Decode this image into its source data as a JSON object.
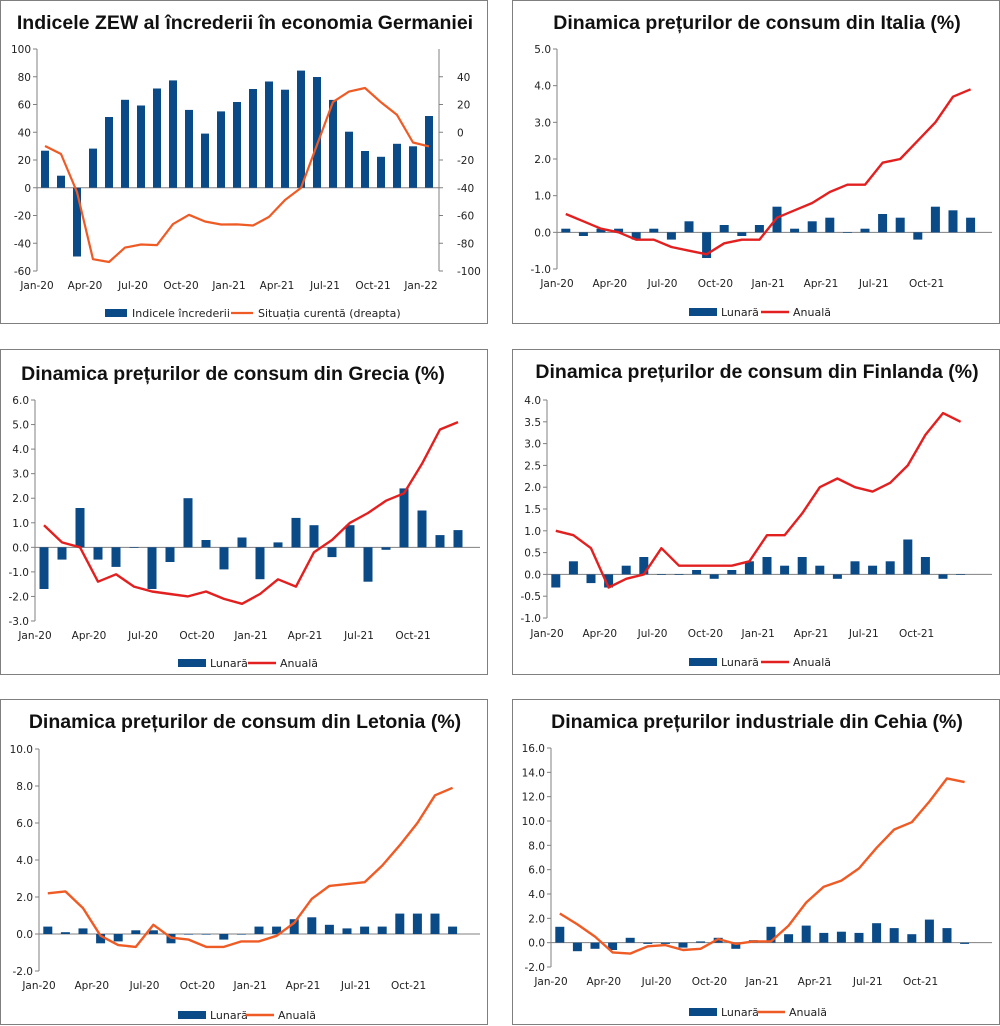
{
  "colors": {
    "bar": "#0a4a86",
    "line_red": "#e32020",
    "line_orange": "#ef5b25"
  },
  "chart_data": [
    {
      "id": "zew",
      "type": "bar+line",
      "title": "Indicele ZEW al încrederii în economia Germaniei",
      "categories": [
        "Jan-20",
        "Feb-20",
        "Mar-20",
        "Apr-20",
        "May-20",
        "Jun-20",
        "Jul-20",
        "Aug-20",
        "Sep-20",
        "Oct-20",
        "Nov-20",
        "Dec-20",
        "Jan-21",
        "Feb-21",
        "Mar-21",
        "Apr-21",
        "May-21",
        "Jun-21",
        "Jul-21",
        "Aug-21",
        "Sep-21",
        "Oct-21",
        "Nov-21",
        "Dec-21",
        "Jan-22"
      ],
      "xtick_labels": [
        "Jan-20",
        "",
        "",
        "Apr-20",
        "",
        "",
        "Jul-20",
        "",
        "",
        "Oct-20",
        "",
        "",
        "Jan-21",
        "",
        "",
        "Apr-21",
        "",
        "",
        "Jul-21",
        "",
        "",
        "Oct-21",
        "",
        "",
        "Jan-22"
      ],
      "bar_series": {
        "name": "Indicele încrederii",
        "values": [
          26.7,
          8.7,
          -49.5,
          28.2,
          51.0,
          63.4,
          59.3,
          71.5,
          77.4,
          56.1,
          39.0,
          55.0,
          61.8,
          71.2,
          76.6,
          70.7,
          84.4,
          79.8,
          63.3,
          40.4,
          26.5,
          22.3,
          31.7,
          29.9,
          51.7
        ]
      },
      "line_series": {
        "name": "Situația curentă (dreapta)",
        "axis": "right",
        "values": [
          -9.9,
          -15.7,
          -43.1,
          -91.5,
          -93.5,
          -83.1,
          -80.9,
          -81.3,
          -66.2,
          -59.5,
          -64.3,
          -66.5,
          -66.4,
          -67.2,
          -61.0,
          -48.8,
          -40.1,
          -9.1,
          21.9,
          29.3,
          31.9,
          21.6,
          12.5,
          -7.4,
          -10.2
        ]
      },
      "ylim": [
        -60,
        100
      ],
      "yticks": [
        "100",
        "80",
        "60",
        "40",
        "20",
        "0",
        "-20",
        "-40",
        "-60"
      ],
      "y2lim": [
        -100,
        60
      ],
      "y2ticks": [
        "40",
        "20",
        "0",
        "-20",
        "-40",
        "-60",
        "-80",
        "-100"
      ],
      "legend": [
        "Indicele încrederii",
        "Situația curentă (dreapta)"
      ]
    },
    {
      "id": "italia",
      "type": "bar+line",
      "title": "Dinamica prețurilor de consum din Italia (%)",
      "categories": [
        "Jan-20",
        "Feb-20",
        "Mar-20",
        "Apr-20",
        "May-20",
        "Jun-20",
        "Jul-20",
        "Aug-20",
        "Sep-20",
        "Oct-20",
        "Nov-20",
        "Dec-20",
        "Jan-21",
        "Feb-21",
        "Mar-21",
        "Apr-21",
        "May-21",
        "Jun-21",
        "Jul-21",
        "Aug-21",
        "Sep-21",
        "Oct-21",
        "Nov-21",
        "Dec-21"
      ],
      "xtick_labels": [
        "Jan-20",
        "",
        "",
        "Apr-20",
        "",
        "",
        "Jul-20",
        "",
        "",
        "Oct-20",
        "",
        "",
        "Jan-21",
        "",
        "",
        "Apr-21",
        "",
        "",
        "Jul-21",
        "",
        "",
        "Oct-21",
        "",
        ""
      ],
      "bar_series": {
        "name": "Lunară",
        "values": [
          0.1,
          -0.1,
          0.1,
          0.1,
          -0.2,
          0.1,
          -0.2,
          0.3,
          -0.7,
          0.2,
          -0.1,
          0.2,
          0.7,
          0.1,
          0.3,
          0.4,
          0.0,
          0.1,
          0.5,
          0.4,
          -0.2,
          0.7,
          0.6,
          0.4
        ]
      },
      "line_series": {
        "name": "Anuală",
        "values": [
          0.5,
          0.3,
          0.1,
          0.0,
          -0.2,
          -0.2,
          -0.4,
          -0.5,
          -0.6,
          -0.3,
          -0.2,
          -0.2,
          0.4,
          0.6,
          0.8,
          1.1,
          1.3,
          1.3,
          1.9,
          2.0,
          2.5,
          3.0,
          3.7,
          3.9
        ]
      },
      "ylim": [
        -1,
        5
      ],
      "yticks": [
        "5.0",
        "4.0",
        "3.0",
        "2.0",
        "1.0",
        "0.0",
        "-1.0"
      ],
      "legend": [
        "Lunară",
        "Anuală"
      ]
    },
    {
      "id": "grecia",
      "type": "bar+line",
      "title": "Dinamica prețurilor de consum din Grecia (%)",
      "categories": [
        "Jan-20",
        "Feb-20",
        "Mar-20",
        "Apr-20",
        "May-20",
        "Jun-20",
        "Jul-20",
        "Aug-20",
        "Sep-20",
        "Oct-20",
        "Nov-20",
        "Dec-20",
        "Jan-21",
        "Feb-21",
        "Mar-21",
        "Apr-21",
        "May-21",
        "Jun-21",
        "Jul-21",
        "Aug-21",
        "Sep-21",
        "Oct-21",
        "Nov-21",
        "Dec-21"
      ],
      "xtick_labels": [
        "Jan-20",
        "",
        "",
        "Apr-20",
        "",
        "",
        "Jul-20",
        "",
        "",
        "Oct-20",
        "",
        "",
        "Jan-21",
        "",
        "",
        "Apr-21",
        "",
        "",
        "Jul-21",
        "",
        "",
        "Oct-21",
        "",
        ""
      ],
      "bar_series": {
        "name": "Lunară",
        "values": [
          -1.7,
          -0.5,
          1.6,
          -0.5,
          -0.8,
          0.0,
          -1.7,
          -0.6,
          2.0,
          0.3,
          -0.9,
          0.4,
          -1.3,
          0.2,
          1.2,
          0.9,
          -0.4,
          0.9,
          -1.4,
          -0.1,
          2.4,
          1.5,
          0.5,
          0.7
        ]
      },
      "line_series": {
        "name": "Anuală",
        "values": [
          0.9,
          0.2,
          0.0,
          -1.4,
          -1.1,
          -1.6,
          -1.8,
          -1.9,
          -2.0,
          -1.8,
          -2.1,
          -2.3,
          -1.9,
          -1.3,
          -1.6,
          -0.2,
          0.3,
          1.0,
          1.4,
          1.9,
          2.2,
          3.4,
          4.8,
          5.1
        ]
      },
      "ylim": [
        -3,
        6
      ],
      "yticks": [
        "6.0",
        "5.0",
        "4.0",
        "3.0",
        "2.0",
        "1.0",
        "0.0",
        "-1.0",
        "-2.0",
        "-3.0"
      ],
      "legend": [
        "Lunară",
        "Anuală"
      ]
    },
    {
      "id": "finlanda",
      "type": "bar+line",
      "title": "Dinamica prețurilor de consum din Finlanda (%)",
      "categories": [
        "Jan-20",
        "Feb-20",
        "Mar-20",
        "Apr-20",
        "May-20",
        "Jun-20",
        "Jul-20",
        "Aug-20",
        "Sep-20",
        "Oct-20",
        "Nov-20",
        "Dec-20",
        "Jan-21",
        "Feb-21",
        "Mar-21",
        "Apr-21",
        "May-21",
        "Jun-21",
        "Jul-21",
        "Aug-21",
        "Sep-21",
        "Oct-21",
        "Nov-21",
        "Dec-21"
      ],
      "xtick_labels": [
        "Jan-20",
        "",
        "",
        "Apr-20",
        "",
        "",
        "Jul-20",
        "",
        "",
        "Oct-20",
        "",
        "",
        "Jan-21",
        "",
        "",
        "Apr-21",
        "",
        "",
        "Jul-21",
        "",
        "",
        "Oct-21",
        "",
        ""
      ],
      "bar_series": {
        "name": "Lunară",
        "values": [
          -0.3,
          0.3,
          -0.2,
          -0.3,
          0.2,
          0.4,
          0.0,
          0.0,
          0.1,
          -0.1,
          0.1,
          0.3,
          0.4,
          0.2,
          0.4,
          0.2,
          -0.1,
          0.3,
          0.2,
          0.3,
          0.8,
          0.4,
          -0.1,
          0.0
        ]
      },
      "line_series": {
        "name": "Anuală",
        "values": [
          1.0,
          0.9,
          0.6,
          -0.3,
          -0.1,
          0.0,
          0.6,
          0.2,
          0.2,
          0.2,
          0.2,
          0.3,
          0.9,
          0.9,
          1.4,
          2.0,
          2.2,
          2.0,
          1.9,
          2.1,
          2.5,
          3.2,
          3.7,
          3.5
        ]
      },
      "ylim": [
        -1,
        4
      ],
      "yticks": [
        "4.0",
        "3.5",
        "3.0",
        "2.5",
        "2.0",
        "1.5",
        "1.0",
        "0.5",
        "0.0",
        "-0.5",
        "-1.0"
      ],
      "legend": [
        "Lunară",
        "Anuală"
      ]
    },
    {
      "id": "letonia",
      "type": "bar+line",
      "title": "Dinamica prețurilor de consum din Letonia (%)",
      "categories": [
        "Jan-20",
        "Feb-20",
        "Mar-20",
        "Apr-20",
        "May-20",
        "Jun-20",
        "Jul-20",
        "Aug-20",
        "Sep-20",
        "Oct-20",
        "Nov-20",
        "Dec-20",
        "Jan-21",
        "Feb-21",
        "Mar-21",
        "Apr-21",
        "May-21",
        "Jun-21",
        "Jul-21",
        "Aug-21",
        "Sep-21",
        "Oct-21",
        "Nov-21",
        "Dec-21"
      ],
      "xtick_labels": [
        "Jan-20",
        "",
        "",
        "Apr-20",
        "",
        "",
        "Jul-20",
        "",
        "",
        "Oct-20",
        "",
        "",
        "Jan-21",
        "",
        "",
        "Apr-21",
        "",
        "",
        "Jul-21",
        "",
        "",
        "Oct-21",
        "",
        ""
      ],
      "bar_series": {
        "name": "Lunară",
        "values": [
          0.4,
          0.1,
          0.3,
          -0.5,
          -0.4,
          0.2,
          0.2,
          -0.5,
          0.0,
          0.0,
          -0.3,
          0.0,
          0.4,
          0.4,
          0.8,
          0.9,
          0.5,
          0.3,
          0.4,
          0.4,
          1.1,
          1.1,
          1.1,
          0.4
        ]
      },
      "line_series": {
        "name": "Anuală",
        "values": [
          2.2,
          2.3,
          1.4,
          -0.1,
          -0.6,
          -0.7,
          0.5,
          -0.2,
          -0.3,
          -0.7,
          -0.7,
          -0.4,
          -0.4,
          -0.1,
          0.6,
          1.9,
          2.6,
          2.7,
          2.8,
          3.7,
          4.8,
          6.0,
          7.5,
          7.9
        ]
      },
      "ylim": [
        -2,
        10
      ],
      "yticks": [
        "10.0",
        "8.0",
        "6.0",
        "4.0",
        "2.0",
        "0.0",
        "-2.0"
      ],
      "legend": [
        "Lunară",
        "Anuală"
      ]
    },
    {
      "id": "cehia",
      "type": "bar+line",
      "title": "Dinamica prețurilor industriale din Cehia (%)",
      "categories": [
        "Jan-20",
        "Feb-20",
        "Mar-20",
        "Apr-20",
        "May-20",
        "Jun-20",
        "Jul-20",
        "Aug-20",
        "Sep-20",
        "Oct-20",
        "Nov-20",
        "Dec-20",
        "Jan-21",
        "Feb-21",
        "Mar-21",
        "Apr-21",
        "May-21",
        "Jun-21",
        "Jul-21",
        "Aug-21",
        "Sep-21",
        "Oct-21",
        "Nov-21",
        "Dec-21"
      ],
      "xtick_labels": [
        "Jan-20",
        "",
        "",
        "Apr-20",
        "",
        "",
        "Jul-20",
        "",
        "",
        "Oct-20",
        "",
        "",
        "Jan-21",
        "",
        "",
        "Apr-21",
        "",
        "",
        "Jul-21",
        "",
        "",
        "Oct-21",
        "",
        ""
      ],
      "bar_series": {
        "name": "Lunară",
        "values": [
          1.3,
          -0.7,
          -0.5,
          -0.6,
          0.4,
          -0.1,
          -0.1,
          -0.4,
          0.1,
          0.4,
          -0.5,
          0.2,
          1.3,
          0.7,
          1.4,
          0.8,
          0.9,
          0.8,
          1.6,
          1.2,
          0.7,
          1.9,
          1.2,
          -0.1
        ]
      },
      "line_series": {
        "name": "Anuală",
        "values": [
          2.4,
          1.5,
          0.5,
          -0.8,
          -0.9,
          -0.3,
          -0.2,
          -0.6,
          -0.5,
          0.3,
          -0.1,
          0.1,
          0.1,
          1.4,
          3.3,
          4.6,
          5.1,
          6.1,
          7.8,
          9.3,
          9.9,
          11.6,
          13.5,
          13.2
        ]
      },
      "ylim": [
        -2,
        16
      ],
      "yticks": [
        "16.0",
        "14.0",
        "12.0",
        "10.0",
        "8.0",
        "6.0",
        "4.0",
        "2.0",
        "0.0",
        "-2.0"
      ],
      "legend": [
        "Lunară",
        "Anuală"
      ]
    }
  ]
}
